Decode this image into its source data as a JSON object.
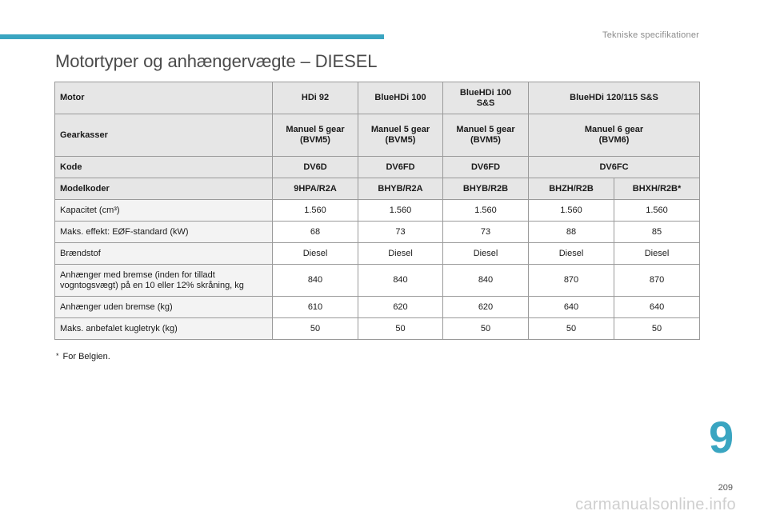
{
  "header": {
    "section_label": "Tekniske specifikationer",
    "accent_color": "#3aa5c1"
  },
  "title": "Motortyper og anhængervægte – DIESEL",
  "table": {
    "rows": [
      {
        "type": "header",
        "label": "Motor",
        "cells": [
          {
            "text": "HDi 92",
            "span": 1
          },
          {
            "text": "BlueHDi 100",
            "span": 1
          },
          {
            "text": "BlueHDi 100\nS&S",
            "span": 1
          },
          {
            "text": "BlueHDi 120/115 S&S",
            "span": 2
          }
        ]
      },
      {
        "type": "header",
        "label": "Gearkasser",
        "cells": [
          {
            "text": "Manuel 5 gear\n(BVM5)",
            "span": 1
          },
          {
            "text": "Manuel 5 gear\n(BVM5)",
            "span": 1
          },
          {
            "text": "Manuel 5 gear\n(BVM5)",
            "span": 1
          },
          {
            "text": "Manuel 6 gear\n(BVM6)",
            "span": 2
          }
        ]
      },
      {
        "type": "header",
        "label": "Kode",
        "cells": [
          {
            "text": "DV6D",
            "span": 1
          },
          {
            "text": "DV6FD",
            "span": 1
          },
          {
            "text": "DV6FD",
            "span": 1
          },
          {
            "text": "DV6FC",
            "span": 2
          }
        ]
      },
      {
        "type": "header",
        "label": "Modelkoder",
        "cells": [
          {
            "text": "9HPA/R2A",
            "span": 1
          },
          {
            "text": "BHYB/R2A",
            "span": 1
          },
          {
            "text": "BHYB/R2B",
            "span": 1
          },
          {
            "text": "BHZH/R2B",
            "span": 1
          },
          {
            "text": "BHXH/R2B*",
            "span": 1
          }
        ]
      },
      {
        "type": "body",
        "label": "Kapacitet (cm³)",
        "cells": [
          {
            "text": "1.560",
            "span": 1
          },
          {
            "text": "1.560",
            "span": 1
          },
          {
            "text": "1.560",
            "span": 1
          },
          {
            "text": "1.560",
            "span": 1
          },
          {
            "text": "1.560",
            "span": 1
          }
        ]
      },
      {
        "type": "body",
        "label": "Maks. effekt: EØF-standard (kW)",
        "cells": [
          {
            "text": "68",
            "span": 1
          },
          {
            "text": "73",
            "span": 1
          },
          {
            "text": "73",
            "span": 1
          },
          {
            "text": "88",
            "span": 1
          },
          {
            "text": "85",
            "span": 1
          }
        ]
      },
      {
        "type": "body",
        "label": "Brændstof",
        "cells": [
          {
            "text": "Diesel",
            "span": 1
          },
          {
            "text": "Diesel",
            "span": 1
          },
          {
            "text": "Diesel",
            "span": 1
          },
          {
            "text": "Diesel",
            "span": 1
          },
          {
            "text": "Diesel",
            "span": 1
          }
        ]
      },
      {
        "type": "body",
        "label": "Anhænger med bremse (inden for tilladt\nvogntogsvægt) på en 10 eller 12% skråning, kg",
        "cells": [
          {
            "text": "840",
            "span": 1
          },
          {
            "text": "840",
            "span": 1
          },
          {
            "text": "840",
            "span": 1
          },
          {
            "text": "870",
            "span": 1
          },
          {
            "text": "870",
            "span": 1
          }
        ]
      },
      {
        "type": "body",
        "label": "Anhænger uden bremse (kg)",
        "cells": [
          {
            "text": "610",
            "span": 1
          },
          {
            "text": "620",
            "span": 1
          },
          {
            "text": "620",
            "span": 1
          },
          {
            "text": "640",
            "span": 1
          },
          {
            "text": "640",
            "span": 1
          }
        ]
      },
      {
        "type": "body",
        "label": "Maks. anbefalet kugletryk (kg)",
        "cells": [
          {
            "text": "50",
            "span": 1
          },
          {
            "text": "50",
            "span": 1
          },
          {
            "text": "50",
            "span": 1
          },
          {
            "text": "50",
            "span": 1
          },
          {
            "text": "50",
            "span": 1
          }
        ]
      }
    ]
  },
  "footnote": {
    "marker": "*",
    "text": "For Belgien."
  },
  "chapter_number": "9",
  "page_number": "209",
  "watermark": "carmanualsonline.info"
}
